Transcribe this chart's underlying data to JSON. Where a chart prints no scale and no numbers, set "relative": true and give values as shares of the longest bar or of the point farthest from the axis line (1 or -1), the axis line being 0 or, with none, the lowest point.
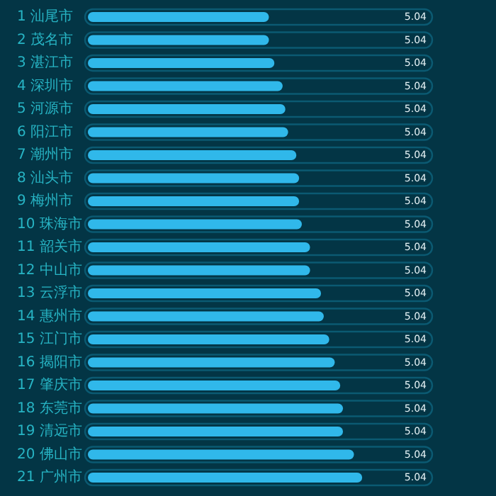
{
  "chart_data": {
    "type": "bar",
    "orientation": "horizontal",
    "relative": true,
    "categories": [
      "1 汕尾市",
      "2 茂名市",
      "3 湛江市",
      "4 深圳市",
      "5 河源市",
      "6 阳江市",
      "7 潮州市",
      "8 汕头市",
      "9 梅州市",
      "10 珠海市",
      "11 韶关市",
      "12 中山市",
      "13 云浮市",
      "14 惠州市",
      "15 江门市",
      "16 揭阳市",
      "17 肇庆市",
      "18 东莞市",
      "19 清远市",
      "20 佛山市",
      "21 广州市"
    ],
    "values": [
      0.66,
      0.66,
      0.68,
      0.71,
      0.72,
      0.73,
      0.76,
      0.77,
      0.77,
      0.78,
      0.81,
      0.81,
      0.85,
      0.86,
      0.88,
      0.9,
      0.92,
      0.93,
      0.93,
      0.97,
      1
    ],
    "color": "#30b8ea",
    "annotations": [
      "5.04",
      "5.04",
      "5.04",
      "5.04",
      "5.04",
      "5.04",
      "5.04",
      "5.04",
      "5.04",
      "5.04",
      "5.04",
      "5.04",
      "5.04",
      "5.04",
      "5.04",
      "5.04",
      "5.04",
      "5.04",
      "5.04",
      "5.04",
      "5.04"
    ]
  }
}
